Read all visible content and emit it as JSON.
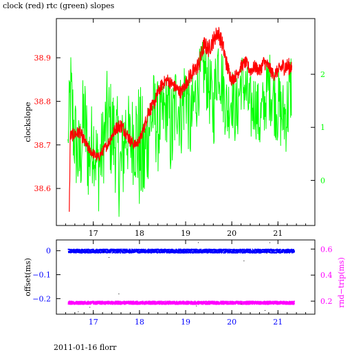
{
  "title": "clock (red) rtc (green) slopes",
  "footer": "2011-01-16 florr",
  "colors": {
    "clock": "#ff0000",
    "rtc": "#00ff00",
    "offset": "#0000ff",
    "rndtrip": "#ff00ff",
    "axis": "#000000"
  },
  "chart_data": [
    {
      "type": "line",
      "x_tick_labels": [
        "17",
        "18",
        "19",
        "20",
        "21"
      ],
      "x_ticks": [
        17,
        18,
        19,
        20,
        21
      ],
      "xlim": [
        16.2,
        21.8
      ],
      "left_axis": {
        "label": "clockslope",
        "ylim": [
          38.515,
          38.99
        ],
        "ticks": [
          38.6,
          38.7,
          38.8,
          38.9
        ],
        "tick_labels": [
          "38.6",
          "38.7",
          "38.8",
          "38.9"
        ]
      },
      "right_axis": {
        "label": "",
        "ylim": [
          -0.85,
          3.05
        ],
        "ticks": [
          0,
          1,
          2
        ],
        "tick_labels": [
          "0",
          "1",
          "2"
        ]
      },
      "series": [
        {
          "axis": "right",
          "color_key": "rtc",
          "x": [
            16.45,
            16.5,
            16.6,
            16.7,
            16.8,
            16.9,
            17.0,
            17.1,
            17.2,
            17.3,
            17.4,
            17.5,
            17.6,
            17.7,
            17.8,
            17.9,
            18.0,
            18.1,
            18.2,
            18.3,
            18.4,
            18.5,
            18.6,
            18.7,
            18.8,
            18.9,
            19.0,
            19.1,
            19.2,
            19.3,
            19.4,
            19.5,
            19.6,
            19.7,
            19.8,
            19.9,
            20.0,
            20.1,
            20.2,
            20.3,
            20.4,
            20.5,
            20.6,
            20.7,
            20.8,
            20.9,
            21.0,
            21.1,
            21.2,
            21.3
          ],
          "values": [
            0.7,
            1.6,
            0.8,
            0.3,
            1.2,
            0.4,
            0.8,
            0.2,
            0.6,
            1.2,
            0.9,
            0.7,
            0.1,
            1.0,
            0.7,
            0.9,
            0.6,
            0.3,
            1.0,
            1.3,
            1.0,
            1.2,
            1.4,
            0.8,
            1.6,
            1.2,
            1.8,
            1.0,
            1.5,
            1.9,
            2.1,
            1.8,
            1.3,
            2.3,
            1.8,
            1.3,
            1.6,
            1.2,
            1.9,
            1.7,
            1.3,
            1.5,
            1.1,
            1.4,
            1.8,
            1.6,
            1.4,
            1.2,
            1.3,
            1.9
          ],
          "amplitude": [
            0.25,
            1.1,
            0.9,
            0.9,
            1.0,
            0.9,
            0.8,
            0.9,
            0.8,
            0.9,
            1.0,
            1.0,
            1.1,
            0.9,
            0.8,
            1.0,
            1.3,
            1.2,
            0.9,
            0.8,
            0.9,
            0.7,
            0.7,
            1.1,
            0.8,
            0.8,
            0.8,
            0.8,
            0.8,
            0.6,
            0.6,
            0.7,
            0.8,
            0.7,
            0.7,
            0.7,
            0.6,
            0.7,
            0.6,
            0.6,
            0.7,
            0.6,
            0.7,
            0.6,
            0.7,
            0.7,
            0.8,
            0.7,
            0.8,
            0.8
          ]
        },
        {
          "axis": "left",
          "color_key": "clock",
          "x": [
            16.48,
            16.5,
            16.6,
            16.7,
            16.8,
            16.9,
            17.0,
            17.1,
            17.2,
            17.3,
            17.4,
            17.5,
            17.6,
            17.7,
            17.8,
            17.9,
            18.0,
            18.1,
            18.2,
            18.3,
            18.4,
            18.5,
            18.6,
            18.7,
            18.8,
            18.9,
            19.0,
            19.1,
            19.2,
            19.3,
            19.4,
            19.5,
            19.6,
            19.7,
            19.8,
            19.9,
            20.0,
            20.1,
            20.2,
            20.3,
            20.4,
            20.5,
            20.6,
            20.7,
            20.8,
            20.9,
            21.0,
            21.1,
            21.2,
            21.3
          ],
          "values": [
            38.54,
            38.72,
            38.725,
            38.73,
            38.71,
            38.69,
            38.68,
            38.67,
            38.685,
            38.7,
            38.72,
            38.74,
            38.745,
            38.73,
            38.71,
            38.7,
            38.71,
            38.74,
            38.78,
            38.79,
            38.82,
            38.84,
            38.85,
            38.84,
            38.83,
            38.82,
            38.84,
            38.86,
            38.87,
            38.89,
            38.93,
            38.92,
            38.94,
            38.96,
            38.93,
            38.88,
            38.85,
            38.86,
            38.88,
            38.89,
            38.87,
            38.88,
            38.87,
            38.89,
            38.88,
            38.86,
            38.87,
            38.88,
            38.88,
            38.88
          ],
          "amplitude": [
            0.02,
            0.015,
            0.015,
            0.015,
            0.015,
            0.012,
            0.012,
            0.012,
            0.012,
            0.012,
            0.015,
            0.015,
            0.018,
            0.015,
            0.015,
            0.012,
            0.012,
            0.015,
            0.018,
            0.015,
            0.015,
            0.015,
            0.015,
            0.015,
            0.015,
            0.015,
            0.015,
            0.02,
            0.02,
            0.02,
            0.02,
            0.02,
            0.02,
            0.02,
            0.02,
            0.02,
            0.015,
            0.015,
            0.015,
            0.015,
            0.015,
            0.015,
            0.015,
            0.018,
            0.015,
            0.015,
            0.015,
            0.02,
            0.02,
            0.02
          ]
        }
      ]
    },
    {
      "type": "scatter",
      "x_tick_labels": [
        "17",
        "18",
        "19",
        "20",
        "21"
      ],
      "x_ticks": [
        17,
        18,
        19,
        20,
        21
      ],
      "xlim": [
        16.2,
        21.8
      ],
      "left_axis": {
        "label": "offset(ms)",
        "ylim": [
          -0.265,
          0.045
        ],
        "ticks": [
          0,
          -0.1,
          -0.2
        ],
        "tick_labels": [
          "0",
          "−0.1",
          "−0.2"
        ]
      },
      "right_axis": {
        "label": "rnd−trip(ms)",
        "ylim": [
          0.1,
          0.67
        ],
        "ticks": [
          0.2,
          0.4,
          0.6
        ],
        "tick_labels": [
          "0.2",
          "0.4",
          "0.6"
        ]
      },
      "series": [
        {
          "axis": "left",
          "color_key": "offset",
          "x_range": [
            16.45,
            21.35
          ],
          "level": 0.0,
          "spread": 0.008
        },
        {
          "axis": "right",
          "color_key": "rndtrip",
          "x_range": [
            16.45,
            21.35
          ],
          "level": 0.19,
          "spread": 0.012
        }
      ]
    }
  ]
}
